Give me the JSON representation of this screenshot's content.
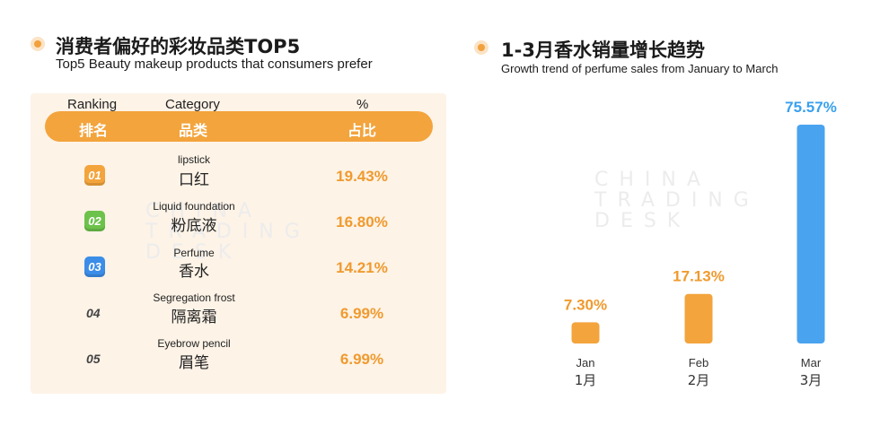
{
  "left": {
    "title_cn": "消费者偏好的彩妆品类TOP5",
    "title_en": "Top5 Beauty makeup products that consumers prefer",
    "headers_en": {
      "ranking": "Ranking",
      "category": "Category",
      "percent": "%"
    },
    "headers_cn": {
      "ranking": "排名",
      "category": "品类",
      "percent": "占比"
    },
    "rows": [
      {
        "rank": "01",
        "en": "lipstick",
        "cn": "口红",
        "pct": "19.43%",
        "badge_color": "#f3a43c"
      },
      {
        "rank": "02",
        "en": "Liquid foundation",
        "cn": "粉底液",
        "pct": "16.80%",
        "badge_color": "#6cc24a"
      },
      {
        "rank": "03",
        "en": "Perfume",
        "cn": "香水",
        "pct": "14.21%",
        "badge_color": "#3b8de8"
      },
      {
        "rank": "04",
        "en": "Segregation frost",
        "cn": "隔离霜",
        "pct": "6.99%"
      },
      {
        "rank": "05",
        "en": "Eyebrow pencil",
        "cn": "眉笔",
        "pct": "6.99%"
      }
    ]
  },
  "right": {
    "title_cn": "1-3月香水销量增长趋势",
    "title_en": "Growth trend of perfume sales from January to March"
  },
  "watermark": [
    "CHINA",
    "TRADING",
    "DESK"
  ],
  "colors": {
    "accent_orange": "#f3a43c",
    "label_orange": "#f09a2e",
    "blue": "#49a3ef",
    "label_blue": "#39a0ee"
  },
  "chart_data": {
    "type": "bar",
    "categories": [
      "Jan",
      "Feb",
      "Mar"
    ],
    "categories_cn": [
      "1月",
      "2月",
      "3月"
    ],
    "values": [
      7.3,
      17.13,
      75.57
    ],
    "labels": [
      "7.30%",
      "17.13%",
      "75.57%"
    ],
    "bar_colors": [
      "#f3a43c",
      "#f3a43c",
      "#49a3ef"
    ],
    "title": "1-3月香水销量增长趋势",
    "subtitle": "Growth trend of perfume sales from January to March",
    "xlabel": "",
    "ylabel": "",
    "ylim": [
      0,
      75.57
    ],
    "grid": false,
    "legend": "none"
  }
}
